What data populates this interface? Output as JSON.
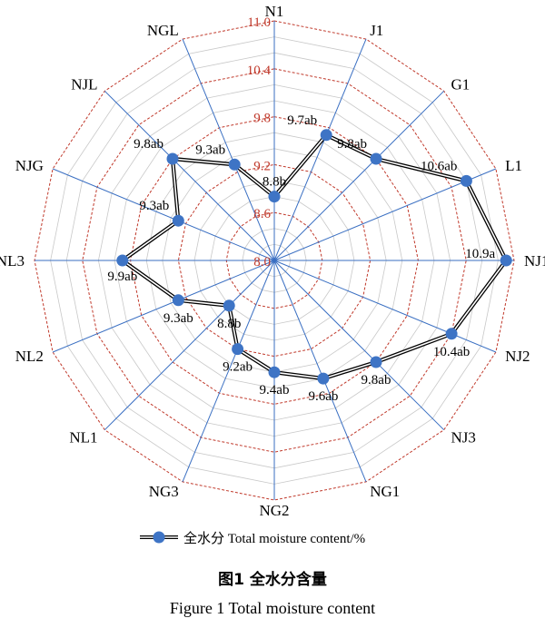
{
  "chart_data": {
    "type": "radar",
    "axes": [
      "N1",
      "J1",
      "G1",
      "L1",
      "NJ1",
      "NJ2",
      "NJ3",
      "NG1",
      "NG2",
      "NG3",
      "NL1",
      "NL2",
      "NL3",
      "NJG",
      "NJL",
      "NGL"
    ],
    "rlim": [
      8.0,
      11.0
    ],
    "ring_values": [
      8.0,
      8.6,
      9.2,
      9.8,
      10.4,
      11.0
    ],
    "ring_labels": [
      "8.0",
      "8.6",
      "9.2",
      "9.8",
      "10.4",
      "11.0"
    ],
    "minor_rings": [
      8.2,
      8.4,
      8.8,
      9.0,
      9.4,
      9.6,
      10.0,
      10.2,
      10.6,
      10.8
    ],
    "series": [
      {
        "name": "全水分 Total moisture content/%",
        "values": [
          8.8,
          9.7,
          9.8,
          10.6,
          10.9,
          10.4,
          9.8,
          9.6,
          9.4,
          9.2,
          8.8,
          9.3,
          9.9,
          9.3,
          9.8,
          9.3
        ],
        "labels": [
          "8.8b",
          "9.7ab",
          "9.8ab",
          "10.6ab",
          "10.9a",
          "10.4ab",
          "9.8ab",
          "9.6ab",
          "9.4ab",
          "9.2ab",
          "8.8b",
          "9.3ab",
          "9.9ab",
          "9.3ab",
          "9.8ab",
          "9.3ab"
        ]
      }
    ],
    "colors": {
      "ring": "#c0392b",
      "ring_label": "#c0392b",
      "minor_ring": "#c8c8c8",
      "spoke": "#3a6fc2",
      "marker": "#3e74c5",
      "line": "#000000"
    }
  },
  "legend": {
    "label": "全水分  Total moisture content/%"
  },
  "captions": {
    "zh": "图1  全水分含量",
    "en": "Figure 1   Total moisture content"
  }
}
